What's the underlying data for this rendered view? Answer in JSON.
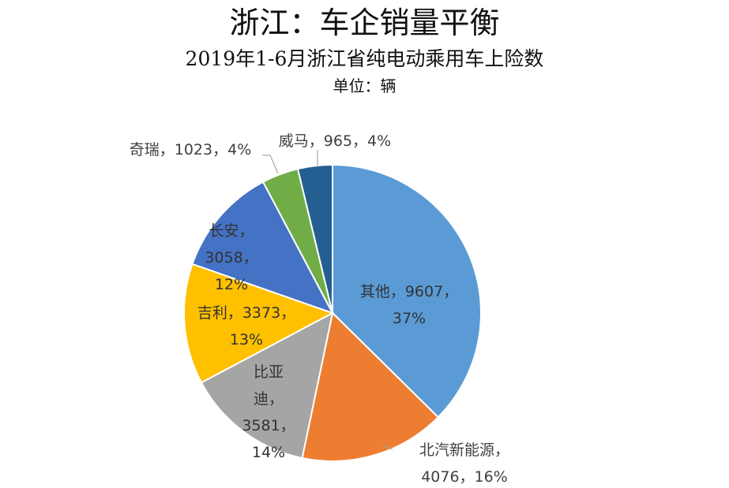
{
  "chart_data": {
    "type": "pie",
    "title": "浙江：车企销量平衡",
    "subtitle": "2019年1-6月浙江省纯电动乘用车上险数",
    "unit_label": "单位：辆",
    "slices": [
      {
        "name": "其他",
        "value": 9607,
        "percent": "37%",
        "color": "#5B9BD5"
      },
      {
        "name": "北汽新能源",
        "value": 4076,
        "percent": "16%",
        "color": "#ED7D31"
      },
      {
        "name": "比亚迪",
        "value": 3581,
        "percent": "14%",
        "color": "#A5A5A5"
      },
      {
        "name": "吉利",
        "value": 3373,
        "percent": "13%",
        "color": "#FFC000"
      },
      {
        "name": "长安",
        "value": 3058,
        "percent": "12%",
        "color": "#4472C4"
      },
      {
        "name": "奇瑞",
        "value": 1023,
        "percent": "4%",
        "color": "#70AD47"
      },
      {
        "name": "威马",
        "value": 965,
        "percent": "4%",
        "color": "#255E91"
      }
    ],
    "data_labels": [
      {
        "lines": [
          "其他，9607，",
          "37%"
        ]
      },
      {
        "lines": [
          "北汽新能源，",
          "4076，16%"
        ]
      },
      {
        "lines": [
          "比亚",
          "迪，",
          "3581，",
          "14%"
        ]
      },
      {
        "lines": [
          "吉利，3373，",
          "13%"
        ]
      },
      {
        "lines": [
          "长安，",
          "3058，",
          "12%"
        ]
      },
      {
        "lines": [
          "奇瑞，1023，4%"
        ]
      },
      {
        "lines": [
          "威马，965，4%"
        ]
      }
    ]
  }
}
